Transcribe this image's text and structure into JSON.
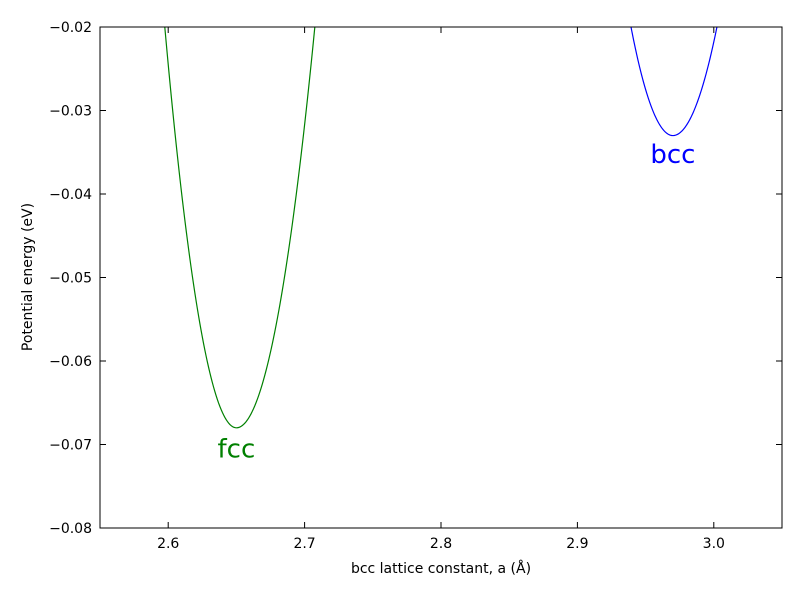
{
  "chart_data": {
    "type": "line",
    "title": "",
    "xlabel": "bcc lattice constant, a (Å)",
    "ylabel": "Potential energy (eV)",
    "xlim": [
      2.55,
      3.05
    ],
    "ylim": [
      -0.08,
      -0.02
    ],
    "xticks": [
      2.6,
      2.7,
      2.8,
      2.9,
      3.0
    ],
    "xtick_labels": [
      "2.6",
      "2.7",
      "2.8",
      "2.9",
      "3.0"
    ],
    "yticks": [
      -0.08,
      -0.07,
      -0.06,
      -0.05,
      -0.04,
      -0.03,
      -0.02
    ],
    "ytick_labels": [
      "−0.08",
      "−0.07",
      "−0.06",
      "−0.05",
      "−0.04",
      "−0.03",
      "−0.02"
    ],
    "grid": false,
    "series": [
      {
        "name": "fcc",
        "color": "#008000",
        "x": [
          2.6,
          2.61,
          2.62,
          2.63,
          2.64,
          2.65,
          2.66,
          2.67,
          2.68,
          2.69,
          2.7,
          2.707
        ],
        "y": [
          -0.02,
          -0.0369,
          -0.0501,
          -0.0595,
          -0.0657,
          -0.068,
          -0.0663,
          -0.0605,
          -0.0504,
          -0.0362,
          -0.0175,
          -0.02
        ],
        "min_x": 2.65,
        "min_y": -0.068,
        "left_x": 2.5975,
        "right_x": 2.7075
      },
      {
        "name": "bcc",
        "color": "#0000ff",
        "x": [
          2.94,
          2.95,
          2.96,
          2.97,
          2.98,
          2.99,
          3.0,
          3.002
        ],
        "y": [
          -0.02,
          -0.0276,
          -0.0316,
          -0.033,
          -0.0316,
          -0.0276,
          -0.021,
          -0.02
        ],
        "min_x": 2.97,
        "min_y": -0.033,
        "left_x": 2.9393,
        "right_x": 3.0023
      }
    ],
    "annotations": [
      {
        "text": "fcc",
        "x": 2.65,
        "y": -0.0705,
        "color": "#008000"
      },
      {
        "text": "bcc",
        "x": 2.97,
        "y": -0.0352,
        "color": "#0000ff"
      }
    ]
  }
}
